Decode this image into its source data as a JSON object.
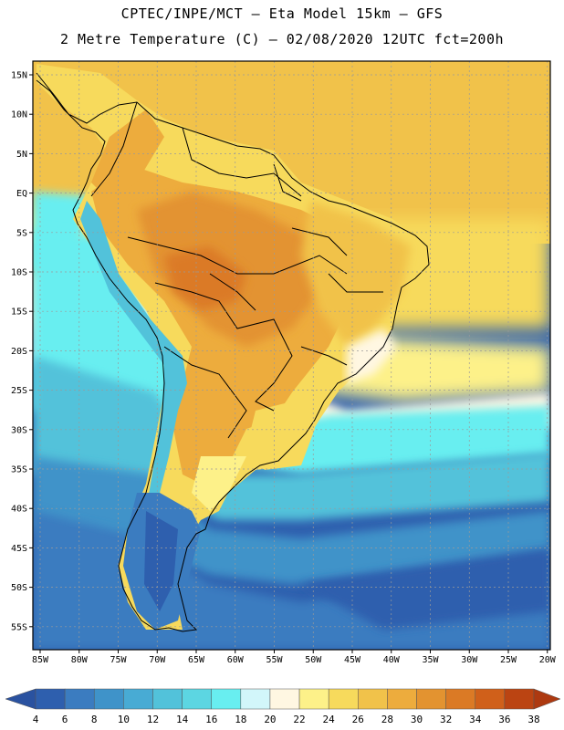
{
  "header": {
    "line1": "CPTEC/INPE/MCT –  Eta Model 15km – GFS",
    "line2": "2 Metre Temperature (C) – 02/08/2020 12UTC fct=200h"
  },
  "axes": {
    "lat_labels": [
      "15N",
      "10N",
      "5N",
      "EQ",
      "5S",
      "10S",
      "15S",
      "20S",
      "25S",
      "30S",
      "35S",
      "40S",
      "45S",
      "50S",
      "55S"
    ],
    "lon_labels": [
      "85W",
      "80W",
      "75W",
      "70W",
      "65W",
      "60W",
      "55W",
      "50W",
      "45W",
      "40W",
      "35W",
      "30W",
      "25W",
      "20W"
    ]
  },
  "colorbar": {
    "labels": [
      "4",
      "6",
      "8",
      "10",
      "12",
      "14",
      "16",
      "18",
      "20",
      "22",
      "24",
      "26",
      "28",
      "30",
      "32",
      "34",
      "36",
      "38"
    ],
    "colors": [
      "#2e5fae",
      "#3b7cc0",
      "#3f93c9",
      "#48abd4",
      "#52c2da",
      "#5cd6e2",
      "#68eef0",
      "#d2f6fa",
      "#fff7e2",
      "#fdf189",
      "#f7da5c",
      "#f1c24a",
      "#edac3d",
      "#e39330",
      "#db7a25",
      "#d0601a",
      "#bb4412"
    ],
    "low_color": "#2a52a0",
    "high_color": "#ad3910"
  },
  "map_colors": {
    "frame": "#000000",
    "grid": "#9a9a9a",
    "coast": "#000000"
  }
}
